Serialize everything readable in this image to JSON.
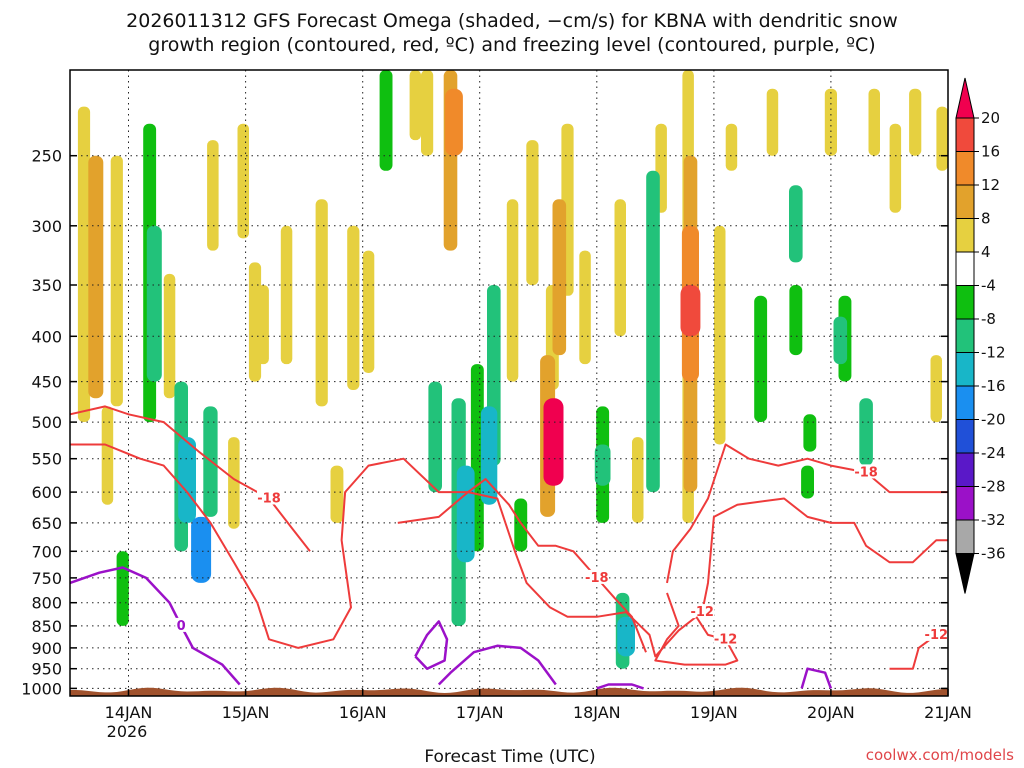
{
  "chart_data": {
    "type": "heatmap",
    "title_line1": "2026011312 GFS Forecast Omega (shaded, −cm/s) for KBNA with dendritic snow",
    "title_line2": "growth region (contoured, red, ºC) and freezing level (contoured, purple, ºC)",
    "xlabel": "Forecast Time (UTC)",
    "x_ticks": [
      "14JAN",
      "15JAN",
      "16JAN",
      "17JAN",
      "18JAN",
      "19JAN",
      "20JAN",
      "21JAN"
    ],
    "x_year_label": "2026",
    "xlim_days": [
      13.5,
      21.0
    ],
    "y_ticks": [
      250,
      300,
      350,
      400,
      450,
      500,
      550,
      600,
      650,
      700,
      750,
      800,
      850,
      900,
      950,
      1000
    ],
    "ylim_hpa": [
      1020,
      200
    ],
    "grid": true,
    "colorbar": {
      "ticks": [
        20,
        16,
        12,
        8,
        4,
        -4,
        -8,
        -12,
        -16,
        -20,
        -24,
        -28,
        -32,
        -36
      ],
      "colors": [
        "#f0004f",
        "#f04a3c",
        "#f08a2a",
        "#e2a22c",
        "#e6d040",
        "#ffffff",
        "#0fbf10",
        "#22c27a",
        "#18b6c8",
        "#1a8ff0",
        "#2050d8",
        "#5a18c8",
        "#9b11c8",
        "#a8a8a8",
        "#000000"
      ]
    },
    "omega_regions": [
      {
        "t": 13.62,
        "p1": 220,
        "p2": 500,
        "v": 6
      },
      {
        "t": 13.72,
        "p1": 250,
        "p2": 470,
        "v": 10
      },
      {
        "t": 13.82,
        "p1": 480,
        "p2": 620,
        "v": 5
      },
      {
        "t": 13.9,
        "p1": 250,
        "p2": 480,
        "v": 6
      },
      {
        "t": 13.95,
        "p1": 700,
        "p2": 850,
        "v": -6
      },
      {
        "t": 14.18,
        "p1": 230,
        "p2": 500,
        "v": -7
      },
      {
        "t": 14.22,
        "p1": 300,
        "p2": 450,
        "v": -10
      },
      {
        "t": 14.35,
        "p1": 340,
        "p2": 470,
        "v": 5
      },
      {
        "t": 14.45,
        "p1": 450,
        "p2": 700,
        "v": -8
      },
      {
        "t": 14.5,
        "p1": 520,
        "p2": 650,
        "v": -14
      },
      {
        "t": 14.7,
        "p1": 480,
        "p2": 640,
        "v": -9
      },
      {
        "t": 14.62,
        "p1": 640,
        "p2": 760,
        "v": -18
      },
      {
        "t": 14.72,
        "p1": 240,
        "p2": 320,
        "v": 5
      },
      {
        "t": 14.9,
        "p1": 520,
        "p2": 660,
        "v": 5
      },
      {
        "t": 14.98,
        "p1": 230,
        "p2": 310,
        "v": 5
      },
      {
        "t": 15.08,
        "p1": 330,
        "p2": 450,
        "v": 6
      },
      {
        "t": 15.15,
        "p1": 350,
        "p2": 430,
        "v": 5
      },
      {
        "t": 15.35,
        "p1": 300,
        "p2": 430,
        "v": 5
      },
      {
        "t": 15.65,
        "p1": 280,
        "p2": 480,
        "v": 6
      },
      {
        "t": 15.78,
        "p1": 560,
        "p2": 650,
        "v": 7
      },
      {
        "t": 15.92,
        "p1": 300,
        "p2": 460,
        "v": 6
      },
      {
        "t": 16.05,
        "p1": 320,
        "p2": 440,
        "v": 5
      },
      {
        "t": 16.2,
        "p1": 200,
        "p2": 260,
        "v": -7
      },
      {
        "t": 16.45,
        "p1": 200,
        "p2": 240,
        "v": 5
      },
      {
        "t": 16.55,
        "p1": 200,
        "p2": 250,
        "v": 6
      },
      {
        "t": 16.62,
        "p1": 450,
        "p2": 600,
        "v": -8
      },
      {
        "t": 16.75,
        "p1": 200,
        "p2": 320,
        "v": 8
      },
      {
        "t": 16.78,
        "p1": 210,
        "p2": 250,
        "v": 14
      },
      {
        "t": 16.82,
        "p1": 470,
        "p2": 850,
        "v": -9
      },
      {
        "t": 16.88,
        "p1": 560,
        "p2": 720,
        "v": -14
      },
      {
        "t": 16.98,
        "p1": 430,
        "p2": 700,
        "v": -7
      },
      {
        "t": 17.08,
        "p1": 480,
        "p2": 620,
        "v": -12
      },
      {
        "t": 17.12,
        "p1": 350,
        "p2": 560,
        "v": -8
      },
      {
        "t": 17.28,
        "p1": 280,
        "p2": 450,
        "v": 5
      },
      {
        "t": 17.35,
        "p1": 610,
        "p2": 700,
        "v": -7
      },
      {
        "t": 17.45,
        "p1": 240,
        "p2": 350,
        "v": 6
      },
      {
        "t": 17.58,
        "p1": 420,
        "p2": 640,
        "v": 10
      },
      {
        "t": 17.63,
        "p1": 470,
        "p2": 590,
        "v": 21
      },
      {
        "t": 17.62,
        "p1": 350,
        "p2": 460,
        "v": 7
      },
      {
        "t": 17.68,
        "p1": 280,
        "p2": 420,
        "v": 8
      },
      {
        "t": 17.75,
        "p1": 230,
        "p2": 360,
        "v": 6
      },
      {
        "t": 17.9,
        "p1": 320,
        "p2": 430,
        "v": 5
      },
      {
        "t": 18.05,
        "p1": 480,
        "p2": 650,
        "v": -7
      },
      {
        "t": 18.05,
        "p1": 530,
        "p2": 590,
        "v": -11
      },
      {
        "t": 18.2,
        "p1": 280,
        "p2": 400,
        "v": 5
      },
      {
        "t": 18.22,
        "p1": 780,
        "p2": 950,
        "v": -8
      },
      {
        "t": 18.25,
        "p1": 830,
        "p2": 920,
        "v": -14
      },
      {
        "t": 18.35,
        "p1": 520,
        "p2": 650,
        "v": 5
      },
      {
        "t": 18.48,
        "p1": 260,
        "p2": 600,
        "v": -8
      },
      {
        "t": 18.55,
        "p1": 230,
        "p2": 290,
        "v": 5
      },
      {
        "t": 18.78,
        "p1": 200,
        "p2": 650,
        "v": 5
      },
      {
        "t": 18.8,
        "p1": 250,
        "p2": 600,
        "v": 8
      },
      {
        "t": 18.8,
        "p1": 300,
        "p2": 450,
        "v": 13
      },
      {
        "t": 18.8,
        "p1": 350,
        "p2": 400,
        "v": 17
      },
      {
        "t": 19.05,
        "p1": 300,
        "p2": 530,
        "v": 5
      },
      {
        "t": 19.15,
        "p1": 230,
        "p2": 260,
        "v": 5
      },
      {
        "t": 19.4,
        "p1": 360,
        "p2": 500,
        "v": -7
      },
      {
        "t": 19.5,
        "p1": 210,
        "p2": 250,
        "v": 5
      },
      {
        "t": 19.7,
        "p1": 270,
        "p2": 330,
        "v": -8
      },
      {
        "t": 19.7,
        "p1": 350,
        "p2": 420,
        "v": -7
      },
      {
        "t": 19.8,
        "p1": 560,
        "p2": 610,
        "v": -7
      },
      {
        "t": 19.82,
        "p1": 490,
        "p2": 540,
        "v": -7
      },
      {
        "t": 20.0,
        "p1": 210,
        "p2": 250,
        "v": 6
      },
      {
        "t": 20.08,
        "p1": 380,
        "p2": 430,
        "v": -8
      },
      {
        "t": 20.12,
        "p1": 360,
        "p2": 450,
        "v": -7
      },
      {
        "t": 20.3,
        "p1": 470,
        "p2": 560,
        "v": -8
      },
      {
        "t": 20.37,
        "p1": 210,
        "p2": 250,
        "v": 5
      },
      {
        "t": 20.55,
        "p1": 230,
        "p2": 290,
        "v": 5
      },
      {
        "t": 20.72,
        "p1": 210,
        "p2": 250,
        "v": 6
      },
      {
        "t": 20.9,
        "p1": 420,
        "p2": 500,
        "v": 5
      },
      {
        "t": 20.95,
        "p1": 220,
        "p2": 260,
        "v": 5
      }
    ],
    "dendritic_contours": [
      {
        "label": "-18",
        "points": [
          [
            13.5,
            490
          ],
          [
            13.8,
            480
          ],
          [
            14.0,
            490
          ],
          [
            14.3,
            500
          ],
          [
            14.6,
            540
          ],
          [
            14.9,
            580
          ],
          [
            15.2,
            610
          ],
          [
            15.4,
            660
          ],
          [
            15.55,
            700
          ]
        ]
      },
      {
        "label": "-12",
        "points": [
          [
            13.5,
            530
          ],
          [
            13.8,
            530
          ],
          [
            14.1,
            550
          ],
          [
            14.3,
            560
          ],
          [
            14.5,
            600
          ],
          [
            14.7,
            650
          ],
          [
            14.9,
            720
          ],
          [
            15.1,
            800
          ],
          [
            15.2,
            880
          ],
          [
            15.45,
            900
          ],
          [
            15.75,
            880
          ],
          [
            15.9,
            810
          ],
          [
            15.82,
            680
          ],
          [
            15.85,
            600
          ],
          [
            16.05,
            560
          ],
          [
            16.35,
            550
          ],
          [
            16.65,
            600
          ],
          [
            16.9,
            600
          ],
          [
            17.15,
            610
          ],
          [
            17.3,
            700
          ],
          [
            17.4,
            760
          ],
          [
            17.6,
            810
          ],
          [
            17.75,
            830
          ],
          [
            18.0,
            830
          ],
          [
            18.25,
            820
          ],
          [
            18.45,
            870
          ],
          [
            18.5,
            920
          ],
          [
            18.7,
            860
          ],
          [
            18.9,
            820
          ],
          [
            18.95,
            760
          ],
          [
            19.0,
            640
          ],
          [
            19.2,
            620
          ],
          [
            19.6,
            610
          ],
          [
            19.8,
            640
          ],
          [
            20.0,
            650
          ],
          [
            20.2,
            650
          ],
          [
            20.3,
            690
          ],
          [
            20.5,
            720
          ],
          [
            20.7,
            720
          ],
          [
            20.9,
            680
          ],
          [
            21.0,
            680
          ]
        ]
      },
      {
        "label": "-18",
        "points": [
          [
            16.3,
            650
          ],
          [
            16.65,
            640
          ],
          [
            16.9,
            600
          ],
          [
            17.05,
            580
          ],
          [
            17.25,
            620
          ],
          [
            17.35,
            650
          ],
          [
            17.5,
            690
          ],
          [
            17.65,
            690
          ],
          [
            17.8,
            700
          ],
          [
            18.0,
            750
          ],
          [
            18.15,
            790
          ],
          [
            18.3,
            830
          ],
          [
            18.42,
            910
          ]
        ]
      },
      {
        "label": "-18",
        "points": [
          [
            18.6,
            760
          ],
          [
            18.65,
            700
          ],
          [
            18.8,
            660
          ],
          [
            18.95,
            610
          ],
          [
            19.1,
            530
          ],
          [
            19.3,
            550
          ],
          [
            19.55,
            560
          ],
          [
            19.8,
            550
          ],
          [
            20.0,
            560
          ],
          [
            20.3,
            570
          ],
          [
            20.5,
            600
          ],
          [
            20.8,
            600
          ],
          [
            21.0,
            600
          ]
        ]
      },
      {
        "label": "-12",
        "points": [
          [
            18.6,
            780
          ],
          [
            18.7,
            850
          ],
          [
            18.6,
            880
          ],
          [
            18.5,
            930
          ],
          [
            18.75,
            940
          ],
          [
            19.1,
            940
          ],
          [
            19.2,
            930
          ],
          [
            19.1,
            880
          ],
          [
            18.95,
            870
          ],
          [
            18.85,
            830
          ]
        ]
      },
      {
        "label": "-12",
        "points": [
          [
            20.5,
            950
          ],
          [
            20.7,
            950
          ],
          [
            20.75,
            900
          ],
          [
            20.9,
            870
          ],
          [
            21.0,
            860
          ]
        ]
      }
    ],
    "freezing_contours": [
      {
        "label": "0",
        "points": [
          [
            13.5,
            760
          ],
          [
            13.75,
            740
          ],
          [
            13.95,
            730
          ],
          [
            14.15,
            750
          ],
          [
            14.35,
            800
          ],
          [
            14.45,
            850
          ],
          [
            14.55,
            900
          ],
          [
            14.8,
            940
          ],
          [
            14.95,
            990
          ]
        ]
      },
      {
        "label": "",
        "points": [
          [
            16.45,
            920
          ],
          [
            16.55,
            870
          ],
          [
            16.65,
            840
          ],
          [
            16.72,
            880
          ],
          [
            16.7,
            930
          ],
          [
            16.55,
            950
          ],
          [
            16.45,
            920
          ]
        ]
      },
      {
        "label": "",
        "points": [
          [
            16.65,
            990
          ],
          [
            16.75,
            960
          ],
          [
            16.95,
            910
          ],
          [
            17.15,
            895
          ],
          [
            17.35,
            900
          ],
          [
            17.5,
            930
          ],
          [
            17.65,
            990
          ]
        ]
      },
      {
        "label": "",
        "points": [
          [
            18.0,
            1000
          ],
          [
            18.1,
            990
          ],
          [
            18.3,
            990
          ],
          [
            18.4,
            1000
          ]
        ]
      },
      {
        "label": "",
        "points": [
          [
            19.75,
            1000
          ],
          [
            19.8,
            950
          ],
          [
            19.95,
            960
          ],
          [
            20.0,
            1000
          ]
        ]
      }
    ]
  },
  "credit": "coolwx.com/models"
}
